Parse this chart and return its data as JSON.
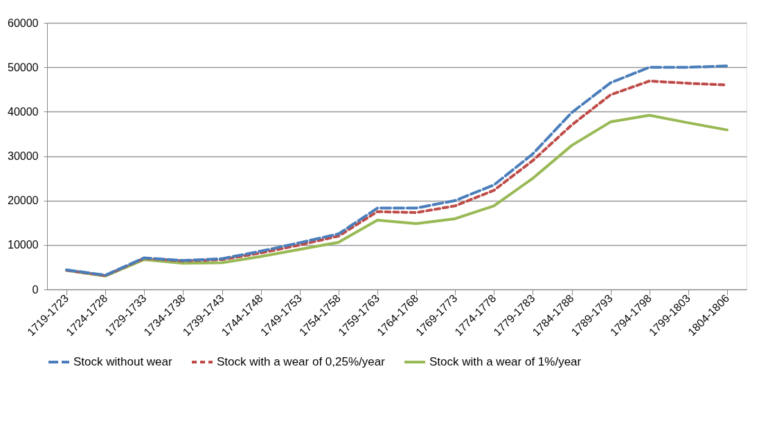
{
  "chart_data": {
    "type": "line",
    "categories": [
      "1719-1723",
      "1724-1728",
      "1729-1733",
      "1734-1738",
      "1739-1743",
      "1744-1748",
      "1749-1753",
      "1754-1758",
      "1759-1763",
      "1764-1768",
      "1769-1773",
      "1774-1778",
      "1779-1783",
      "1784-1788",
      "1789-1793",
      "1794-1798",
      "1799-1803",
      "1804-1806"
    ],
    "series": [
      {
        "name": "Stock without wear",
        "color": "#4a7ebb",
        "line_style": "dashed",
        "values": [
          4400,
          3200,
          7100,
          6500,
          6900,
          8600,
          10500,
          12500,
          18300,
          18300,
          20000,
          23500,
          30500,
          39800,
          46500,
          50000,
          50000,
          50300
        ]
      },
      {
        "name": "Stock with a wear of 0,25%/year",
        "color": "#be4b48",
        "line_style": "dotted",
        "values": [
          4300,
          3100,
          7000,
          6400,
          6700,
          8200,
          10000,
          12000,
          17500,
          17300,
          18800,
          22300,
          29000,
          37000,
          43800,
          46900,
          46400,
          46000
        ]
      },
      {
        "name": "Stock with a wear of 1%/year",
        "color": "#98b954",
        "line_style": "solid",
        "values": [
          4300,
          3000,
          6700,
          5900,
          6000,
          7400,
          9000,
          10600,
          15600,
          14800,
          15900,
          18800,
          25000,
          32400,
          37700,
          39200,
          37500,
          35900
        ]
      }
    ],
    "ylim": [
      0,
      60000
    ],
    "yticks": [
      0,
      10000,
      20000,
      30000,
      40000,
      50000,
      60000
    ],
    "grid": "y",
    "legend": "bottom",
    "marker": "none"
  }
}
